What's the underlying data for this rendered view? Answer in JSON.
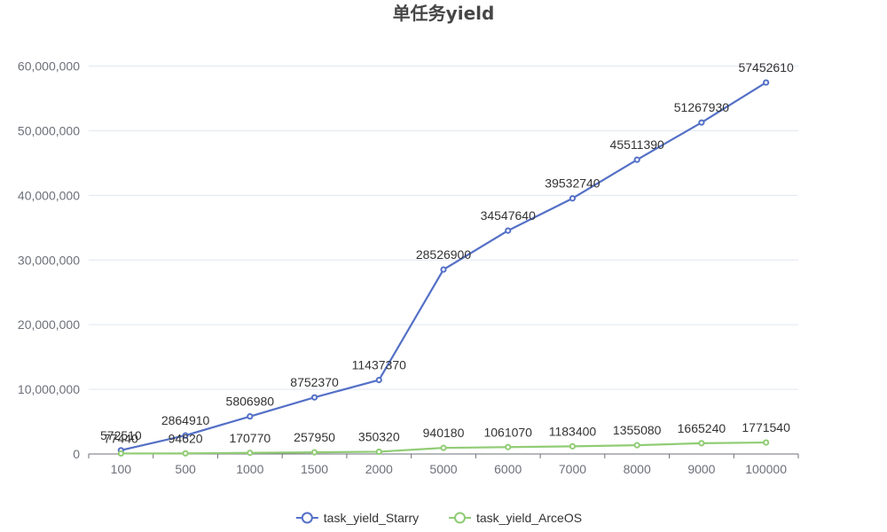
{
  "colors": {
    "series_a": "#5470c6",
    "series_b": "#91cc75",
    "grid": "#e0e6f1",
    "axis": "#6e7079",
    "title": "#464646"
  },
  "chart_data": {
    "type": "line",
    "title": "单任务yield",
    "xlabel": "",
    "ylabel": "",
    "categories": [
      "100",
      "500",
      "1000",
      "1500",
      "2000",
      "5000",
      "6000",
      "7000",
      "8000",
      "9000",
      "100000"
    ],
    "y_ticks": [
      "0",
      "10,000,000",
      "20,000,000",
      "30,000,000",
      "40,000,000",
      "50,000,000",
      "60,000,000"
    ],
    "ylim": [
      0,
      60000000
    ],
    "grid": true,
    "legend_position": "bottom-center",
    "series": [
      {
        "name": "task_yield_Starry",
        "values": [
          572510,
          2864910,
          5806980,
          8752370,
          11437370,
          28526900,
          34547640,
          39532740,
          45511390,
          51267930,
          57452610
        ],
        "labels": [
          "572510",
          "2864910",
          "5806980",
          "8752370",
          "11437370",
          "28526900",
          "34547640",
          "39532740",
          "45511390",
          "51267930",
          "57452610"
        ]
      },
      {
        "name": "task_yield_ArceOS",
        "values": [
          77440,
          94620,
          170770,
          257950,
          350320,
          940180,
          1061070,
          1183400,
          1355080,
          1665240,
          1771540
        ],
        "labels": [
          "77440",
          "94620",
          "170770",
          "257950",
          "350320",
          "940180",
          "1061070",
          "1183400",
          "1355080",
          "1665240",
          "1771540"
        ]
      }
    ]
  }
}
